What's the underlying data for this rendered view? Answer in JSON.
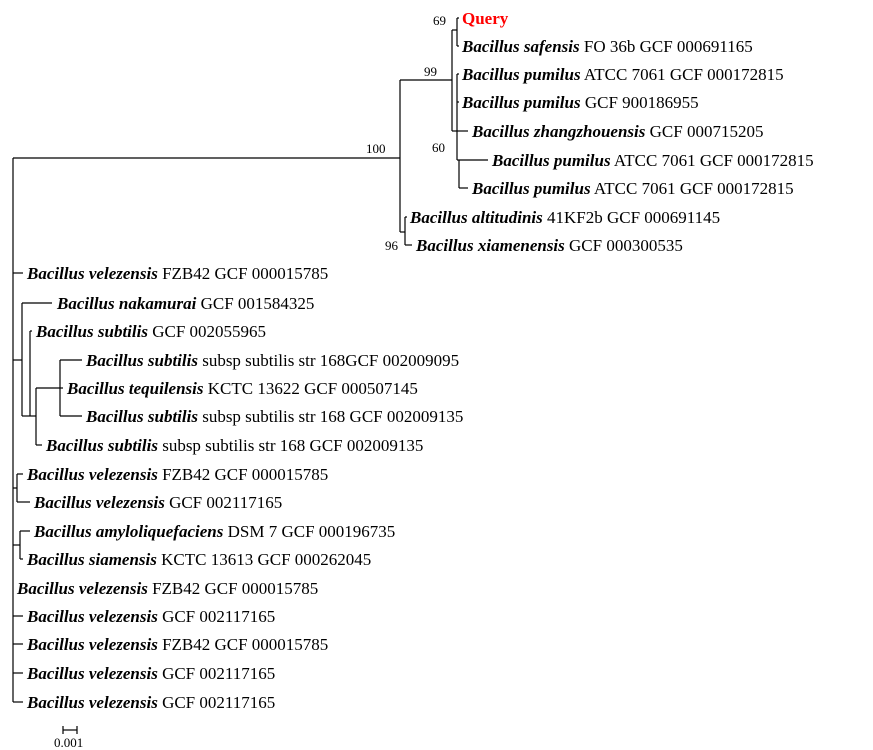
{
  "colors": {
    "query": "#ff0000",
    "text": "#000000",
    "line": "#000000"
  },
  "tree": {
    "leaves": [
      {
        "id": "query",
        "genus": "Query",
        "rest": "",
        "highlight": true
      },
      {
        "id": "safensis",
        "genus": "Bacillus safensis",
        "rest": "FO 36b GCF 000691165"
      },
      {
        "id": "pumilus1",
        "genus": "Bacillus pumilus",
        "rest": "ATCC 7061 GCF 000172815"
      },
      {
        "id": "pumilus2",
        "genus": "Bacillus pumilus",
        "rest": "GCF 900186955"
      },
      {
        "id": "zhangzhou",
        "genus": "Bacillus zhangzhouensis",
        "rest": "GCF 000715205"
      },
      {
        "id": "pumilus3",
        "genus": "Bacillus pumilus",
        "rest": "ATCC 7061 GCF 000172815"
      },
      {
        "id": "pumilus4",
        "genus": "Bacillus pumilus",
        "rest": "ATCC 7061 GCF 000172815"
      },
      {
        "id": "altitudinis",
        "genus": "Bacillus altitudinis",
        "rest": "41KF2b GCF 000691145"
      },
      {
        "id": "xiamenensis",
        "genus": "Bacillus xiamenensis",
        "rest": "GCF 000300535"
      },
      {
        "id": "velezensis1",
        "genus": "Bacillus velezensis",
        "rest": "FZB42 GCF 000015785"
      },
      {
        "id": "nakamurai",
        "genus": "Bacillus nakamurai",
        "rest": "GCF 001584325"
      },
      {
        "id": "subtilis1",
        "genus": "Bacillus subtilis",
        "rest": "GCF 002055965"
      },
      {
        "id": "subtilis2",
        "genus": "Bacillus subtilis",
        "rest": "subsp subtilis str 168GCF 002009095"
      },
      {
        "id": "tequilensis",
        "genus": "Bacillus tequilensis",
        "rest": "KCTC 13622 GCF 000507145"
      },
      {
        "id": "subtilis3",
        "genus": "Bacillus subtilis",
        "rest": "subsp subtilis str 168 GCF 002009135"
      },
      {
        "id": "subtilis4",
        "genus": "Bacillus subtilis",
        "rest": "subsp subtilis str 168 GCF 002009135"
      },
      {
        "id": "velezensis2",
        "genus": "Bacillus velezensis",
        "rest": "FZB42 GCF 000015785"
      },
      {
        "id": "velezensis3",
        "genus": "Bacillus velezensis",
        "rest": "GCF 002117165"
      },
      {
        "id": "amylo",
        "genus": "Bacillus amyloliquefaciens",
        "rest": "DSM 7 GCF 000196735"
      },
      {
        "id": "siamensis",
        "genus": "Bacillus siamensis",
        "rest": "KCTC 13613 GCF 000262045"
      },
      {
        "id": "velezensis4",
        "genus": "Bacillus velezensis",
        "rest": "FZB42 GCF 000015785"
      },
      {
        "id": "velezensis5",
        "genus": "Bacillus velezensis",
        "rest": "GCF 002117165"
      },
      {
        "id": "velezensis6",
        "genus": "Bacillus velezensis",
        "rest": "FZB42 GCF 000015785"
      },
      {
        "id": "velezensis7",
        "genus": "Bacillus velezensis",
        "rest": "GCF 002117165"
      },
      {
        "id": "velezensis8",
        "genus": "Bacillus velezensis",
        "rest": "GCF 002117165"
      }
    ],
    "bootstrap": {
      "b69": "69",
      "b99": "99",
      "b100": "100",
      "b60": "60",
      "b96": "96"
    },
    "scale_bar": {
      "label": "0.001"
    }
  }
}
